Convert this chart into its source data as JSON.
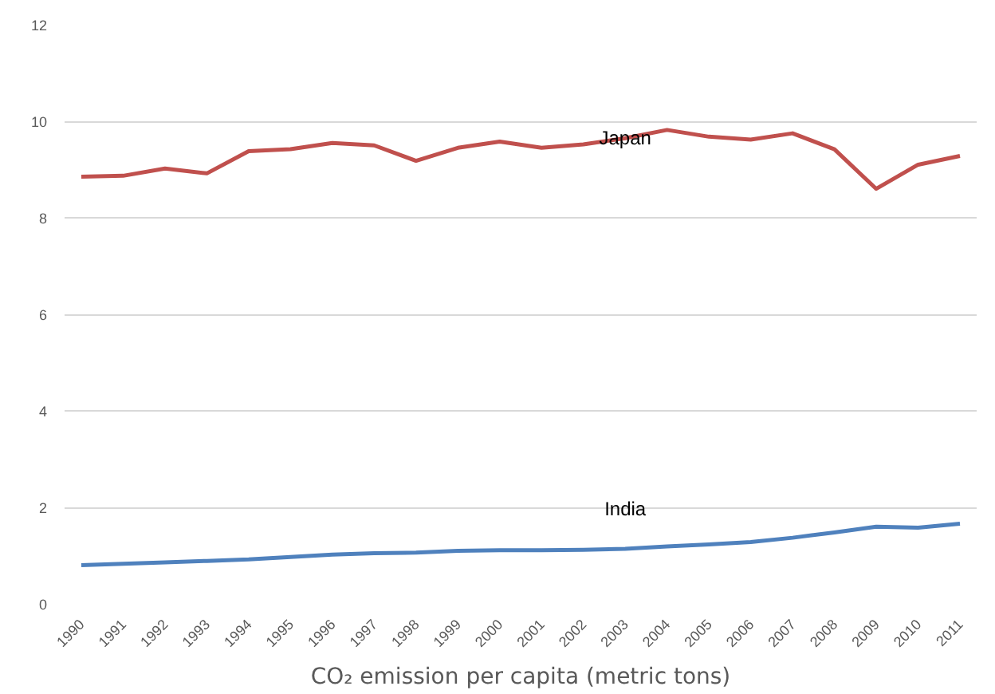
{
  "chart_data": {
    "type": "line",
    "xlabel": "CO₂ emission per capita (metric tons)",
    "categories": [
      "1990",
      "1991",
      "1992",
      "1993",
      "1994",
      "1995",
      "1996",
      "1997",
      "1998",
      "1999",
      "2000",
      "2001",
      "2002",
      "2003",
      "2004",
      "2005",
      "2006",
      "2007",
      "2008",
      "2009",
      "2010",
      "2011"
    ],
    "series": [
      {
        "name": "Japan",
        "color": "#c0504d",
        "values": [
          8.85,
          8.87,
          9.02,
          8.92,
          9.38,
          9.42,
          9.55,
          9.5,
          9.18,
          9.45,
          9.58,
          9.45,
          9.52,
          9.65,
          9.82,
          9.68,
          9.62,
          9.75,
          9.42,
          8.6,
          9.1,
          9.28
        ]
      },
      {
        "name": "India",
        "color": "#4f81bd",
        "values": [
          0.8,
          0.83,
          0.86,
          0.89,
          0.92,
          0.97,
          1.02,
          1.05,
          1.06,
          1.1,
          1.11,
          1.11,
          1.12,
          1.14,
          1.19,
          1.23,
          1.28,
          1.37,
          1.48,
          1.6,
          1.58,
          1.66
        ]
      }
    ],
    "ylim": [
      0,
      12
    ],
    "yticks": [
      0,
      2,
      4,
      6,
      8,
      10,
      12
    ],
    "grid": "y",
    "legend": false,
    "marker": "none",
    "line_style": "solid"
  }
}
